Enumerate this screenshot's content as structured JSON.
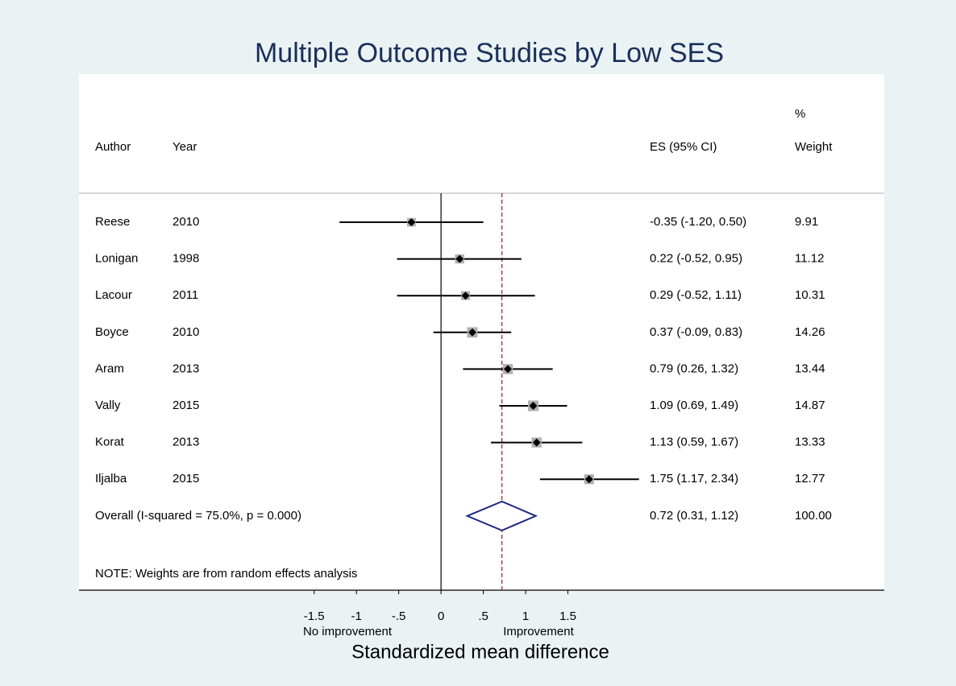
{
  "chart_data": {
    "type": "forest",
    "title": "Multiple Outcome Studies by Low SES",
    "headers": {
      "author": "Author",
      "year": "Year",
      "es": "ES (95% CI)",
      "weight_top": "%",
      "weight": "Weight"
    },
    "studies": [
      {
        "author": "Reese",
        "year": "2010",
        "es": -0.35,
        "lo": -1.2,
        "hi": 0.5,
        "es_label": "-0.35 (-1.20, 0.50)",
        "weight": 9.91
      },
      {
        "author": "Lonigan",
        "year": "1998",
        "es": 0.22,
        "lo": -0.52,
        "hi": 0.95,
        "es_label": "0.22 (-0.52, 0.95)",
        "weight": 11.12
      },
      {
        "author": "Lacour",
        "year": "2011",
        "es": 0.29,
        "lo": -0.52,
        "hi": 1.11,
        "es_label": "0.29 (-0.52, 1.11)",
        "weight": 10.31
      },
      {
        "author": "Boyce",
        "year": "2010",
        "es": 0.37,
        "lo": -0.09,
        "hi": 0.83,
        "es_label": "0.37 (-0.09, 0.83)",
        "weight": 14.26
      },
      {
        "author": "Aram",
        "year": "2013",
        "es": 0.79,
        "lo": 0.26,
        "hi": 1.32,
        "es_label": "0.79 (0.26, 1.32)",
        "weight": 13.44
      },
      {
        "author": "Vally",
        "year": "2015",
        "es": 1.09,
        "lo": 0.69,
        "hi": 1.49,
        "es_label": "1.09 (0.69, 1.49)",
        "weight": 14.87
      },
      {
        "author": "Korat",
        "year": "2013",
        "es": 1.13,
        "lo": 0.59,
        "hi": 1.67,
        "es_label": "1.13 (0.59, 1.67)",
        "weight": 13.33
      },
      {
        "author": "Iljalba",
        "year": "2015",
        "es": 1.75,
        "lo": 1.17,
        "hi": 2.34,
        "es_label": "1.75 (1.17, 2.34)",
        "weight": 12.77
      }
    ],
    "overall": {
      "label": "Overall (I-squared = 75.0%, p = 0.000)",
      "es": 0.72,
      "lo": 0.31,
      "hi": 1.12,
      "es_label": "0.72 (0.31, 1.12)",
      "weight": 100,
      "weight_label": "100.00"
    },
    "note": "NOTE: Weights are from random effects analysis",
    "xlabel": "Standardized mean difference",
    "xlabel_left": "No improvement",
    "xlabel_right": "Improvement",
    "xlim": [
      -4.28,
      5.24
    ],
    "xticks": [
      -1.5,
      -1,
      {
        "value": -0.5,
        "label": "-.5"
      },
      0,
      {
        "value": 0.5,
        "label": ".5"
      },
      1,
      1.5
    ],
    "square_color": "#b0b0b0",
    "diamond_color": "#1f2a80",
    "reference_color": "#a0302a"
  }
}
